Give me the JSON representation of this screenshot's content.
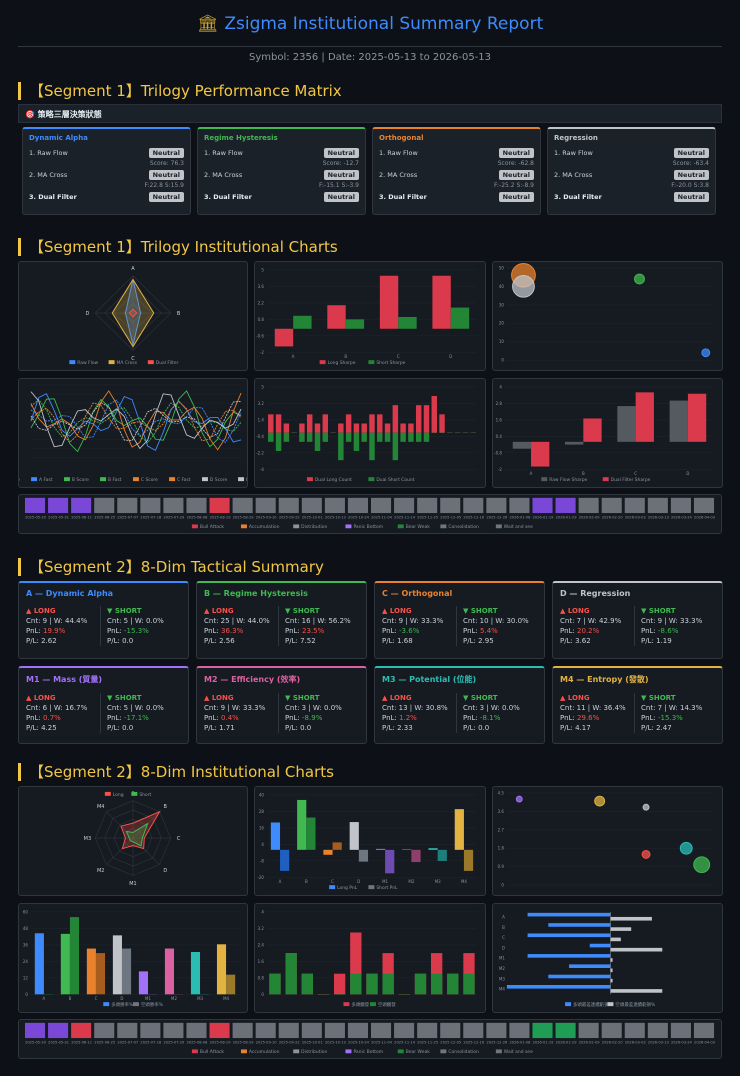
{
  "header": {
    "title": "Zsigma Institutional Summary Report",
    "subtitle": "Symbol: 2356 | Date: 2025-05-13 to 2026-05-13"
  },
  "sections": {
    "s1": "【Segment 1】Trilogy Performance Matrix",
    "s2": "【Segment 1】Trilogy Institutional Charts",
    "s3": "【Segment 2】8-Dim Tactical Summary",
    "s4": "【Segment 2】8-Dim Institutional Charts"
  },
  "matrix_bar": "🎯 策略三層決策狀態",
  "colors": {
    "blue": "#3d8bfd",
    "green": "#3fb950",
    "orange": "#e8822d",
    "gray": "#8b949e",
    "red": "#f85149",
    "purple": "#a371f7",
    "pink": "#db61a2",
    "teal": "#2bbcb4",
    "yellow": "#e3b341"
  },
  "matrix": [
    {
      "title": "Dynamic Alpha",
      "color": "#3d8bfd",
      "r1": "1. Raw Flow",
      "b1": "Neutral",
      "s1": "Score: 76.3",
      "r2": "2. MA Cross",
      "b2": "Neutral",
      "s2": "F:22.8 S:15.9",
      "r3": "3. Dual Filter",
      "b3": "Neutral"
    },
    {
      "title": "Regime Hysteresis",
      "color": "#3fb950",
      "r1": "1. Raw Flow",
      "b1": "Neutral",
      "s1": "Score: -12.7",
      "r2": "2. MA Cross",
      "b2": "Neutral",
      "s2": "F:-15.1 S:-3.9",
      "r3": "3. Dual Filter",
      "b3": "Neutral"
    },
    {
      "title": "Orthogonal",
      "color": "#e8822d",
      "r1": "1. Raw Flow",
      "b1": "Neutral",
      "s1": "Score: -62.8",
      "r2": "2. MA Cross",
      "b2": "Neutral",
      "s2": "F:-25.2 S:-8.9",
      "r3": "3. Dual Filter",
      "b3": "Neutral"
    },
    {
      "title": "Regression",
      "color": "#c0c4c9",
      "r1": "1. Raw Flow",
      "b1": "Neutral",
      "s1": "Score: -63.4",
      "r2": "2. MA Cross",
      "b2": "Neutral",
      "s2": "F:-20.0 S:3.8",
      "r3": "3. Dual Filter",
      "b3": "Neutral"
    }
  ],
  "tactical": [
    {
      "title": "A — Dynamic Alpha",
      "color": "#3d8bfd",
      "long": "▲ LONG",
      "short": "▼ SHORT",
      "lc": "Cnt: 9 | W: 44.4%",
      "lp": "PnL: ",
      "lpv": "19.9%",
      "lf": "P/L: 2.62",
      "sc": "Cnt: 5 | W: 0.0%",
      "sp": "PnL: ",
      "spv": "-15.3%",
      "sf": "P/L: 0.0",
      "lpc": "rd",
      "spc": "g"
    },
    {
      "title": "B — Regime Hysteresis",
      "color": "#3fb950",
      "long": "▲ LONG",
      "short": "▼ SHORT",
      "lc": "Cnt: 25 | W: 44.0%",
      "lp": "PnL: ",
      "lpv": "36.3%",
      "lf": "P/L: 2.56",
      "sc": "Cnt: 16 | W: 56.2%",
      "sp": "PnL: ",
      "spv": "23.5%",
      "sf": "P/L: 7.52",
      "lpc": "rd",
      "spc": "rd"
    },
    {
      "title": "C — Orthogonal",
      "color": "#e8822d",
      "long": "▲ LONG",
      "short": "▼ SHORT",
      "lc": "Cnt: 9 | W: 33.3%",
      "lp": "PnL: ",
      "lpv": "-3.6%",
      "lf": "P/L: 1.68",
      "sc": "Cnt: 10 | W: 30.0%",
      "sp": "PnL: ",
      "spv": "5.4%",
      "sf": "P/L: 2.95",
      "lpc": "g",
      "spc": "rd"
    },
    {
      "title": "D — Regression",
      "color": "#c0c4c9",
      "long": "▲ LONG",
      "short": "▼ SHORT",
      "lc": "Cnt: 7 | W: 42.9%",
      "lp": "PnL: ",
      "lpv": "20.2%",
      "lf": "P/L: 3.62",
      "sc": "Cnt: 9 | W: 33.3%",
      "sp": "PnL: ",
      "spv": "-8.6%",
      "sf": "P/L: 1.19",
      "lpc": "rd",
      "spc": "g"
    },
    {
      "title": "M1 — Mass (質量)",
      "color": "#a371f7",
      "long": "▲ LONG",
      "short": "▼ SHORT",
      "lc": "Cnt: 6 | W: 16.7%",
      "lp": "PnL: ",
      "lpv": "0.7%",
      "lf": "P/L: 4.25",
      "sc": "Cnt: 5 | W: 0.0%",
      "sp": "PnL: ",
      "spv": "-17.1%",
      "sf": "P/L: 0.0",
      "lpc": "rd",
      "spc": "g"
    },
    {
      "title": "M2 — Efficiency (效率)",
      "color": "#db61a2",
      "long": "▲ LONG",
      "short": "▼ SHORT",
      "lc": "Cnt: 9 | W: 33.3%",
      "lp": "PnL: ",
      "lpv": "0.4%",
      "lf": "P/L: 1.71",
      "sc": "Cnt: 3 | W: 0.0%",
      "sp": "PnL: ",
      "spv": "-8.9%",
      "sf": "P/L: 0.0",
      "lpc": "rd",
      "spc": "g"
    },
    {
      "title": "M3 — Potential (位能)",
      "color": "#2bbcb4",
      "long": "▲ LONG",
      "short": "▼ SHORT",
      "lc": "Cnt: 13 | W: 30.8%",
      "lp": "PnL: ",
      "lpv": "1.2%",
      "lf": "P/L: 2.33",
      "sc": "Cnt: 3 | W: 0.0%",
      "sp": "PnL: ",
      "spv": "-8.1%",
      "sf": "P/L: 0.0",
      "lpc": "rd",
      "spc": "g"
    },
    {
      "title": "M4 — Entropy (發散)",
      "color": "#e3b341",
      "long": "▲ LONG",
      "short": "▼ SHORT",
      "lc": "Cnt: 11 | W: 36.4%",
      "lp": "PnL: ",
      "lpv": "29.6%",
      "lf": "P/L: 4.17",
      "sc": "Cnt: 7 | W: 14.3%",
      "sp": "PnL: ",
      "spv": "-15.3%",
      "sf": "P/L: 2.47",
      "lpc": "rd",
      "spc": "g"
    }
  ],
  "chart_data": [
    {
      "id": "radar1",
      "type": "radar",
      "axes": [
        "A",
        "B",
        "C",
        "D"
      ],
      "series": [
        {
          "name": "Raw Flow",
          "color": "#3d8bfd",
          "values": [
            90,
            20,
            85,
            20
          ]
        },
        {
          "name": "MA Cross",
          "color": "#e3b341",
          "values": [
            90,
            55,
            90,
            55
          ]
        },
        {
          "name": "Dual Filter",
          "color": "#f85149",
          "values": [
            10,
            10,
            10,
            10
          ]
        }
      ]
    },
    {
      "id": "bar1",
      "type": "bar",
      "categories": [
        "A",
        "B",
        "C",
        "D"
      ],
      "series": [
        {
          "name": "Long Sharpe",
          "color": "#da3a4b",
          "values": [
            -1.5,
            2,
            4.5,
            4.5
          ]
        },
        {
          "name": "Short Sharpe",
          "color": "#238636",
          "values": [
            1.1,
            0.8,
            1,
            1.8
          ]
        }
      ],
      "ylim": [
        -2,
        5
      ]
    },
    {
      "id": "bubble1",
      "type": "scatter",
      "x": [
        5,
        5,
        12,
        16
      ],
      "y": [
        46,
        40,
        44,
        4
      ],
      "r": [
        12,
        11,
        5,
        4
      ],
      "colors": [
        "#e8822d",
        "#c0c4c9",
        "#3fb950",
        "#3d8bfd"
      ],
      "ylim": [
        0,
        50
      ]
    },
    {
      "id": "line1",
      "type": "line",
      "series": [
        {
          "name": "A Score",
          "color": "#3d8bfd"
        },
        {
          "name": "A Fast",
          "color": "#3d8bfd"
        },
        {
          "name": "B Score",
          "color": "#3fb950"
        },
        {
          "name": "B Fast",
          "color": "#3fb950"
        },
        {
          "name": "C Score",
          "color": "#e8822d"
        },
        {
          "name": "C Fast",
          "color": "#e8822d"
        },
        {
          "name": "D Score",
          "color": "#c0c4c9"
        },
        {
          "name": "D Fast",
          "color": "#c0c4c9"
        }
      ],
      "ylim": [
        -100,
        100
      ]
    },
    {
      "id": "bar2",
      "type": "bar",
      "series": [
        {
          "name": "Dual Long Count",
          "color": "#da3a4b",
          "values": [
            2,
            2,
            1,
            0,
            1,
            2,
            1,
            2,
            0,
            1,
            2,
            1,
            1,
            2,
            2,
            1,
            3,
            1,
            1,
            3,
            3,
            4,
            2,
            0,
            0,
            0,
            0
          ]
        },
        {
          "name": "Dual Short Count",
          "color": "#238636",
          "values": [
            -1,
            -2,
            -1,
            0,
            -1,
            -1,
            -2,
            -1,
            0,
            -3,
            -1,
            -2,
            -1,
            -3,
            -1,
            -1,
            -3,
            -1,
            -1,
            -1,
            -1,
            0,
            0,
            0,
            0,
            0,
            0
          ]
        }
      ],
      "ylim": [
        -4,
        5
      ]
    },
    {
      "id": "bar3",
      "type": "bar",
      "categories": [
        "A",
        "B",
        "C",
        "D"
      ],
      "series": [
        {
          "name": "Raw Flow Sharpe",
          "color": "#555a60",
          "values": [
            -0.5,
            -0.2,
            2.6,
            3.0
          ]
        },
        {
          "name": "Dual Filter Sharpe",
          "color": "#da3a4b",
          "values": [
            -1.8,
            1.7,
            3.6,
            3.5
          ]
        }
      ],
      "ylim": [
        -2,
        4
      ]
    },
    {
      "id": "heat1",
      "type": "heatmap",
      "legend": [
        "Bull Attack",
        "Accumulation",
        "Distribution",
        "Panic Bottom",
        "Bear Weak",
        "Consolidation",
        "Wait and see"
      ],
      "cells": [
        5,
        5,
        1,
        6,
        6,
        6,
        6,
        6,
        0,
        6,
        6,
        6,
        6,
        6,
        6,
        6,
        6,
        6,
        6,
        6,
        6,
        6,
        3,
        3,
        6,
        6,
        6,
        6,
        6,
        6
      ],
      "dates": [
        "2025-05-20",
        "2025-05-31",
        "2025-06-11",
        "2025-06-25",
        "2025-07-07",
        "2025-07-18",
        "2025-07-29",
        "2025-08-08",
        "2025-08-19",
        "2025-08-29",
        "2025-09-10",
        "2025-09-22",
        "2025-10-01",
        "2025-10-13",
        "2025-10-24",
        "2025-11-04",
        "2025-11-14",
        "2025-11-25",
        "2025-12-05",
        "2025-12-16",
        "2025-12-26",
        "2026-01-08",
        "2026-01-19",
        "2026-01-29",
        "2026-02-09",
        "2026-02-20",
        "2026-03-03",
        "2026-03-13",
        "2026-03-24",
        "2026-04-03"
      ]
    },
    {
      "id": "radar2",
      "type": "radar",
      "axes": [
        "A",
        "B",
        "C",
        "D",
        "M1",
        "M2",
        "M3",
        "M4"
      ],
      "series": [
        {
          "name": "Long",
          "color": "#f85149",
          "values": [
            40,
            100,
            30,
            40,
            20,
            40,
            20,
            45
          ]
        },
        {
          "name": "Short",
          "color": "#3fb950",
          "values": [
            15,
            55,
            25,
            30,
            10,
            10,
            10,
            25
          ]
        }
      ]
    },
    {
      "id": "bar4",
      "type": "bar",
      "categories": [
        "A",
        "B",
        "C",
        "D",
        "M1",
        "M2",
        "M3",
        "M4"
      ],
      "series": [
        {
          "name": "Long PnL",
          "color": "#3d8bfd",
          "colors": [
            "#3d8bfd",
            "#3fb950",
            "#e8822d",
            "#c0c4c9",
            "#a371f7",
            "#db61a2",
            "#2bbcb4",
            "#e3b341"
          ],
          "values": [
            19.9,
            36.3,
            -3.6,
            20.2,
            0.7,
            0.4,
            1.2,
            29.6
          ]
        },
        {
          "name": "Short PnL",
          "color": "#6e7681",
          "colors": [
            "#1f5fbf",
            "#238636",
            "#a85d1e",
            "#6e7681",
            "#6e4bb0",
            "#8f3f6b",
            "#1d7f7a",
            "#9a7a2a"
          ],
          "values": [
            -15.3,
            23.5,
            5.4,
            -8.6,
            -17.1,
            -8.9,
            -8.1,
            -15.3
          ]
        }
      ],
      "ylim": [
        -20,
        40
      ]
    },
    {
      "id": "bubble2",
      "type": "scatter",
      "x": [
        -11,
        15,
        30,
        43,
        30,
        48
      ],
      "y": [
        4.2,
        4.1,
        3.8,
        1.8,
        1.5,
        1.0
      ],
      "r": [
        3,
        5,
        3,
        6,
        4,
        8
      ],
      "colors": [
        "#a371f7",
        "#e3b341",
        "#c0c4c9",
        "#2bbcb4",
        "#f85149",
        "#3fb950"
      ],
      "ylim": [
        0,
        4.5
      ]
    },
    {
      "id": "bar5",
      "type": "bar",
      "categories": [
        "A",
        "B",
        "C",
        "D",
        "M1",
        "M2",
        "M3",
        "M4"
      ],
      "series": [
        {
          "name": "多頭勝率%",
          "color": "#3d8bfd",
          "colors": [
            "#3d8bfd",
            "#3fb950",
            "#e8822d",
            "#c0c4c9",
            "#a371f7",
            "#db61a2",
            "#2bbcb4",
            "#e3b341"
          ],
          "values": [
            44.4,
            44.0,
            33.3,
            42.9,
            16.7,
            33.3,
            30.8,
            36.4
          ]
        },
        {
          "name": "空頭勝率%",
          "color": "#6e7681",
          "colors": [
            "#238636",
            "#238636",
            "#a85d1e",
            "#6e7681",
            "#6e4bb0",
            "#8f3f6b",
            "#1d7f7a",
            "#9a7a2a"
          ],
          "values": [
            0,
            56.2,
            30.0,
            33.3,
            0,
            0,
            0,
            14.3
          ]
        }
      ],
      "ylim": [
        0,
        60
      ]
    },
    {
      "id": "bar6",
      "type": "bar",
      "series": [
        {
          "name": "多頭觸發",
          "color": "#da3a4b",
          "values": [
            1,
            2,
            1,
            0,
            1,
            3,
            1,
            2,
            0,
            1,
            2,
            1,
            2
          ]
        },
        {
          "name": "空頭觸發",
          "color": "#238636",
          "values": [
            1,
            2,
            1,
            0,
            0,
            1,
            1,
            1,
            0,
            1,
            1,
            1,
            1
          ]
        }
      ],
      "ylim": [
        0,
        4
      ]
    },
    {
      "id": "hbar1",
      "type": "bar",
      "categories": [
        "A",
        "B",
        "C",
        "D",
        "M1",
        "M2",
        "M3",
        "M4"
      ],
      "series": [
        {
          "name": "多頭最差連續虧損%",
          "color": "#3d8bfd",
          "values": [
            -4,
            -3,
            -4,
            -1,
            -4,
            -2,
            -3,
            -5
          ]
        },
        {
          "name": "空頭最差連續虧損%",
          "color": "#c0c4c9",
          "values": [
            2,
            1,
            0.5,
            2.5,
            0.1,
            0.1,
            0.1,
            2.5
          ]
        }
      ]
    },
    {
      "id": "heat2",
      "type": "heatmap",
      "legend": [
        "Bull Attack",
        "Accumulation",
        "Distribution",
        "Panic Bottom",
        "Bear Weak",
        "Consolidation",
        "Wait and see"
      ],
      "cells": [
        3,
        3,
        0,
        6,
        6,
        6,
        6,
        6,
        0,
        6,
        6,
        6,
        6,
        6,
        6,
        6,
        6,
        6,
        6,
        6,
        6,
        6,
        4,
        4,
        6,
        6,
        6,
        6,
        6,
        6
      ],
      "dates": [
        "2025-05-20",
        "2025-05-31",
        "2025-06-11",
        "2025-06-25",
        "2025-07-07",
        "2025-07-18",
        "2025-07-29",
        "2025-08-08",
        "2025-08-19",
        "2025-08-29",
        "2025-09-10",
        "2025-09-22",
        "2025-10-01",
        "2025-10-13",
        "2025-10-24",
        "2025-11-04",
        "2025-11-14",
        "2025-11-25",
        "2025-12-05",
        "2025-12-16",
        "2025-12-26",
        "2026-01-08",
        "2026-01-19",
        "2026-01-29",
        "2026-02-09",
        "2026-02-20",
        "2026-03-03",
        "2026-03-13",
        "2026-03-24",
        "2026-04-03"
      ]
    }
  ]
}
